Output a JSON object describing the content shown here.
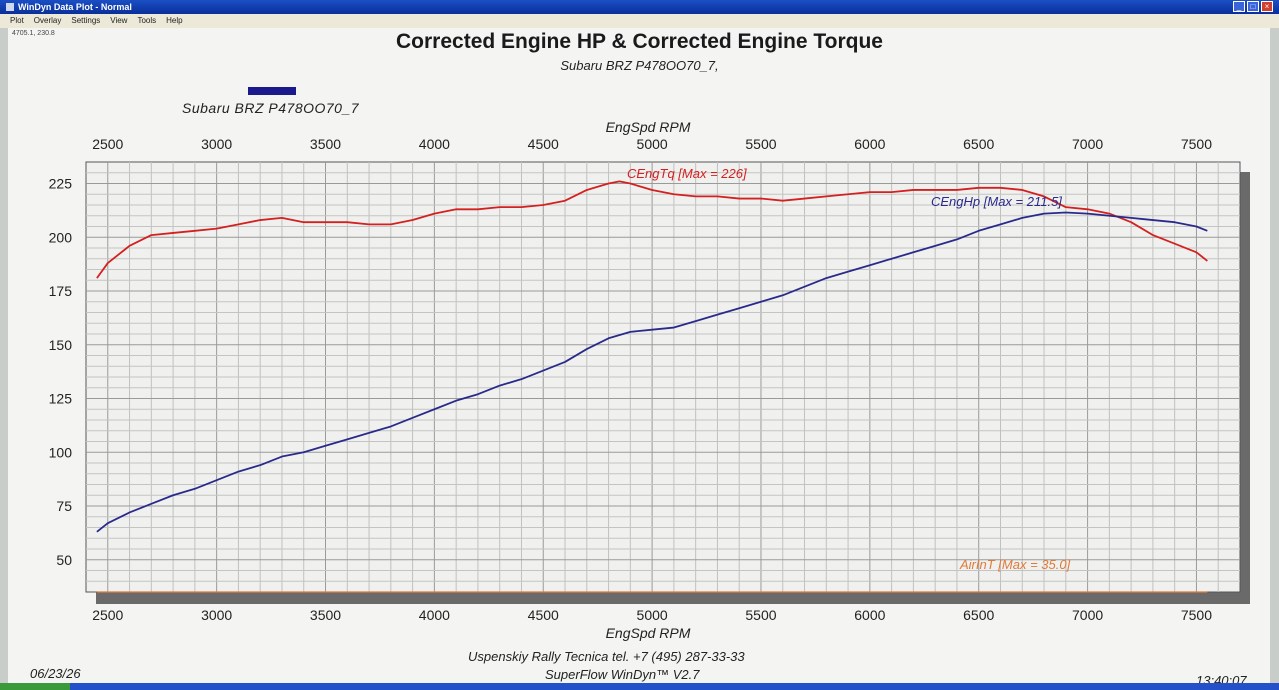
{
  "window": {
    "title": "WinDyn Data Plot - Normal",
    "menu": [
      "Plot",
      "Overlay",
      "Settings",
      "View",
      "Tools",
      "Help"
    ],
    "coord_readout": "4705.1, 230.8"
  },
  "header": {
    "title": "Corrected Engine HP & Corrected Engine Torque",
    "subtitle": "Subaru BRZ P478OO70_7,",
    "legend_label": "Subaru BRZ P478OO70_7"
  },
  "chart_data": {
    "type": "line",
    "xlabel": "EngSpd  RPM",
    "xlim": [
      2400,
      7700
    ],
    "ylim": [
      35,
      235
    ],
    "x_ticks": [
      2500,
      3000,
      3500,
      4000,
      4500,
      5000,
      5500,
      6000,
      6500,
      7000,
      7500
    ],
    "x_tick_labels": [
      "2500",
      "3000",
      "3500",
      "4000",
      "4500",
      "5000",
      "5500",
      "6000",
      "6500",
      "7000",
      "7500"
    ],
    "y_ticks": [
      50,
      75,
      100,
      125,
      150,
      175,
      200,
      225
    ],
    "y_tick_labels": [
      "50",
      "75",
      "100",
      "125",
      "150",
      "175",
      "200",
      "225"
    ],
    "grid": true,
    "series": [
      {
        "name": "CEngTq [Max = 226]",
        "color": "#d42020",
        "x": [
          2450,
          2500,
          2550,
          2600,
          2700,
          2800,
          2900,
          3000,
          3100,
          3200,
          3300,
          3400,
          3500,
          3600,
          3700,
          3800,
          3900,
          4000,
          4100,
          4200,
          4300,
          4400,
          4500,
          4600,
          4700,
          4800,
          4850,
          4900,
          5000,
          5100,
          5200,
          5300,
          5400,
          5500,
          5600,
          5700,
          5800,
          5900,
          6000,
          6100,
          6200,
          6300,
          6400,
          6500,
          6600,
          6700,
          6800,
          6900,
          7000,
          7100,
          7200,
          7300,
          7400,
          7500,
          7550
        ],
        "y": [
          181,
          188,
          192,
          196,
          201,
          202,
          203,
          204,
          206,
          208,
          209,
          207,
          207,
          207,
          206,
          206,
          208,
          211,
          213,
          213,
          214,
          214,
          215,
          217,
          222,
          225,
          226,
          225,
          222,
          220,
          219,
          219,
          218,
          218,
          217,
          218,
          219,
          220,
          221,
          221,
          222,
          222,
          222,
          223,
          223,
          222,
          219,
          214,
          213,
          211,
          207,
          201,
          197,
          193,
          189
        ]
      },
      {
        "name": "CEngHp [Max = 211.5]",
        "color": "#2a2a8c",
        "x": [
          2450,
          2500,
          2600,
          2700,
          2800,
          2900,
          3000,
          3100,
          3200,
          3300,
          3400,
          3500,
          3600,
          3700,
          3800,
          3900,
          4000,
          4100,
          4200,
          4300,
          4400,
          4500,
          4600,
          4700,
          4800,
          4900,
          5000,
          5100,
          5200,
          5300,
          5400,
          5500,
          5600,
          5700,
          5800,
          5900,
          6000,
          6100,
          6200,
          6300,
          6400,
          6500,
          6600,
          6700,
          6800,
          6900,
          7000,
          7100,
          7200,
          7300,
          7400,
          7500,
          7550
        ],
        "y": [
          63,
          67,
          72,
          76,
          80,
          83,
          87,
          91,
          94,
          98,
          100,
          103,
          106,
          109,
          112,
          116,
          120,
          124,
          127,
          131,
          134,
          138,
          142,
          148,
          153,
          156,
          157,
          158,
          161,
          164,
          167,
          170,
          173,
          177,
          181,
          184,
          187,
          190,
          193,
          196,
          199,
          203,
          206,
          209,
          211,
          211.5,
          211,
          210,
          209,
          208,
          207,
          205,
          203
        ]
      },
      {
        "name": "AirInT [Max = 35.0]",
        "color": "#e07a3a",
        "x": [
          2450,
          7550
        ],
        "y": [
          35,
          35
        ]
      }
    ]
  },
  "footer": {
    "date": "06/23/26",
    "company": "Uspenskiy Rally Tecnica   tel. +7 (495) 287-33-33",
    "software": "SuperFlow WinDyn™ V2.7",
    "time": "13:40:07"
  }
}
